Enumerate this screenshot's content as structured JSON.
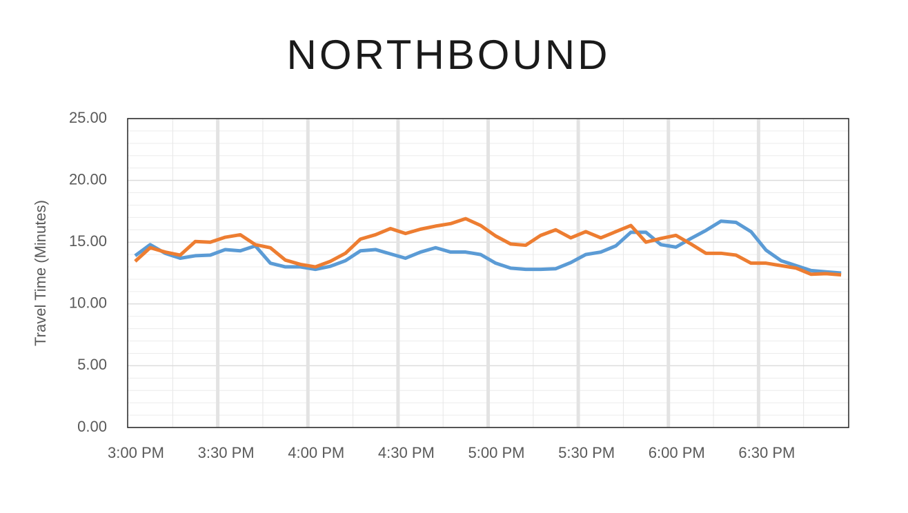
{
  "chart_data": {
    "type": "line",
    "title": "NORTHBOUND",
    "ylabel": "Travel Time (Minutes)",
    "x": [
      2.5,
      7.5,
      12.5,
      17.5,
      22.5,
      27.5,
      32.5,
      37.5,
      42.5,
      47.5,
      52.5,
      57.5,
      62.5,
      67.5,
      72.5,
      77.5,
      82.5,
      87.5,
      92.5,
      97.5,
      102.5,
      107.5,
      112.5,
      117.5,
      122.5,
      127.5,
      132.5,
      137.5,
      142.5,
      147.5,
      152.5,
      157.5,
      162.5,
      167.5,
      172.5,
      177.5,
      182.5,
      187.5,
      192.5,
      197.5,
      202.5,
      207.5,
      212.5,
      217.5,
      222.5,
      227.5,
      232.5,
      237.5
    ],
    "xlim": [
      0,
      240
    ],
    "xticks": [
      {
        "value": 0,
        "label": "3:00 PM"
      },
      {
        "value": 30,
        "label": "3:30 PM"
      },
      {
        "value": 60,
        "label": "4:00 PM"
      },
      {
        "value": 90,
        "label": "4:30 PM"
      },
      {
        "value": 120,
        "label": "5:00 PM"
      },
      {
        "value": 150,
        "label": "5:30 PM"
      },
      {
        "value": 180,
        "label": "6:00 PM"
      },
      {
        "value": 210,
        "label": "6:30 PM"
      }
    ],
    "ylim": [
      0,
      25
    ],
    "yticks": [
      {
        "value": 0,
        "label": "0.00"
      },
      {
        "value": 5,
        "label": "5.00"
      },
      {
        "value": 10,
        "label": "10.00"
      },
      {
        "value": 15,
        "label": "15.00"
      },
      {
        "value": 20,
        "label": "20.00"
      },
      {
        "value": 25,
        "label": "25.00"
      }
    ],
    "grid": true,
    "series": [
      {
        "color": "#5b9bd5",
        "values": [
          13.9,
          14.8,
          14.1,
          13.7,
          13.9,
          13.95,
          14.4,
          14.3,
          14.7,
          13.3,
          13.0,
          13.0,
          12.8,
          13.05,
          13.5,
          14.3,
          14.4,
          14.05,
          13.7,
          14.2,
          14.55,
          14.2,
          14.2,
          14.0,
          13.3,
          12.9,
          12.8,
          12.8,
          12.85,
          13.35,
          14.0,
          14.2,
          14.7,
          15.8,
          15.8,
          14.8,
          14.6,
          15.3,
          15.95,
          16.7,
          16.6,
          15.85,
          14.35,
          13.5,
          13.1,
          12.7,
          12.6,
          12.5
        ]
      },
      {
        "color": "#ed7d31",
        "values": [
          13.45,
          14.55,
          14.2,
          13.95,
          15.05,
          15.0,
          15.4,
          15.6,
          14.8,
          14.55,
          13.55,
          13.2,
          13.0,
          13.45,
          14.1,
          15.25,
          15.6,
          16.1,
          15.7,
          16.05,
          16.3,
          16.5,
          16.9,
          16.35,
          15.5,
          14.85,
          14.75,
          15.55,
          16.0,
          15.35,
          15.85,
          15.35,
          15.85,
          16.35,
          15.0,
          15.3,
          15.55,
          14.85,
          14.1,
          14.1,
          13.95,
          13.3,
          13.3,
          13.1,
          12.9,
          12.4,
          12.45,
          12.35
        ]
      }
    ]
  }
}
